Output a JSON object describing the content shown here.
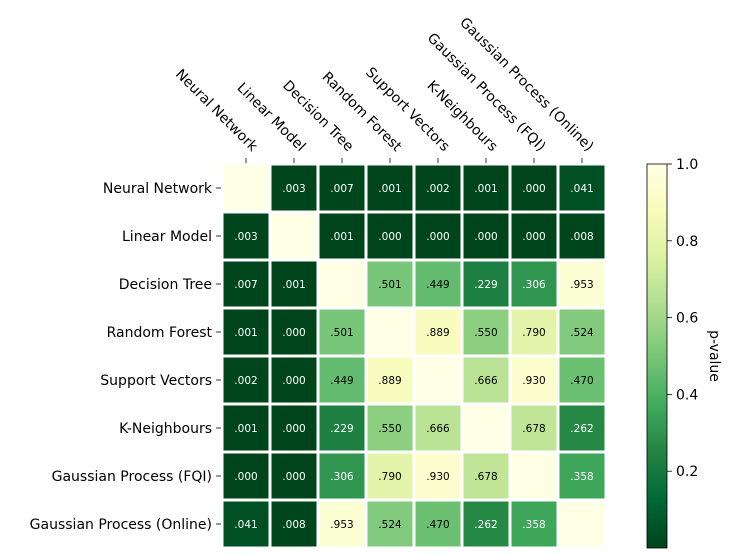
{
  "chart_data": {
    "type": "heatmap",
    "title": "",
    "xlabel": "",
    "ylabel": "",
    "categories": [
      "Neural Network",
      "Linear Model",
      "Decision Tree",
      "Random Forest",
      "Support Vectors",
      "K-Neighbours",
      "Gaussian Process (FQI)",
      "Gaussian Process (Online)"
    ],
    "values": [
      [
        1.0,
        0.003,
        0.007,
        0.001,
        0.002,
        0.001,
        0.0,
        0.041
      ],
      [
        0.003,
        1.0,
        0.001,
        0.0,
        0.0,
        0.0,
        0.0,
        0.008
      ],
      [
        0.007,
        0.001,
        1.0,
        0.501,
        0.449,
        0.229,
        0.306,
        0.953
      ],
      [
        0.001,
        0.0,
        0.501,
        1.0,
        0.889,
        0.55,
        0.79,
        0.524
      ],
      [
        0.002,
        0.0,
        0.449,
        0.889,
        1.0,
        0.666,
        0.93,
        0.47
      ],
      [
        0.001,
        0.0,
        0.229,
        0.55,
        0.666,
        1.0,
        0.678,
        0.262
      ],
      [
        0.0,
        0.0,
        0.306,
        0.79,
        0.93,
        0.678,
        1.0,
        0.358
      ],
      [
        0.041,
        0.008,
        0.953,
        0.524,
        0.47,
        0.262,
        0.358,
        1.0
      ]
    ],
    "cell_labels": [
      [
        "",
        ".003",
        ".007",
        ".001",
        ".002",
        ".001",
        ".000",
        ".041"
      ],
      [
        ".003",
        "",
        ".001",
        ".000",
        ".000",
        ".000",
        ".000",
        ".008"
      ],
      [
        ".007",
        ".001",
        "",
        ".501",
        ".449",
        ".229",
        ".306",
        ".953"
      ],
      [
        ".001",
        ".000",
        ".501",
        "",
        ".889",
        ".550",
        ".790",
        ".524"
      ],
      [
        ".002",
        ".000",
        ".449",
        ".889",
        "",
        ".666",
        ".930",
        ".470"
      ],
      [
        ".001",
        ".000",
        ".229",
        ".550",
        ".666",
        "",
        ".678",
        ".262"
      ],
      [
        ".000",
        ".000",
        ".306",
        ".790",
        ".930",
        ".678",
        "",
        ".358"
      ],
      [
        ".041",
        ".008",
        ".953",
        ".524",
        ".470",
        ".262",
        ".358",
        ""
      ]
    ],
    "colormap": "YlGn_r",
    "colorbar": {
      "label": "p-value",
      "range": [
        0.0,
        1.0
      ],
      "ticks": [
        0.2,
        0.4,
        0.6,
        0.8,
        1.0
      ],
      "tick_labels": [
        "0.2",
        "0.4",
        "0.6",
        "0.8",
        "1.0"
      ],
      "placement": "right"
    },
    "x_tick_position": "top",
    "grid": false
  }
}
